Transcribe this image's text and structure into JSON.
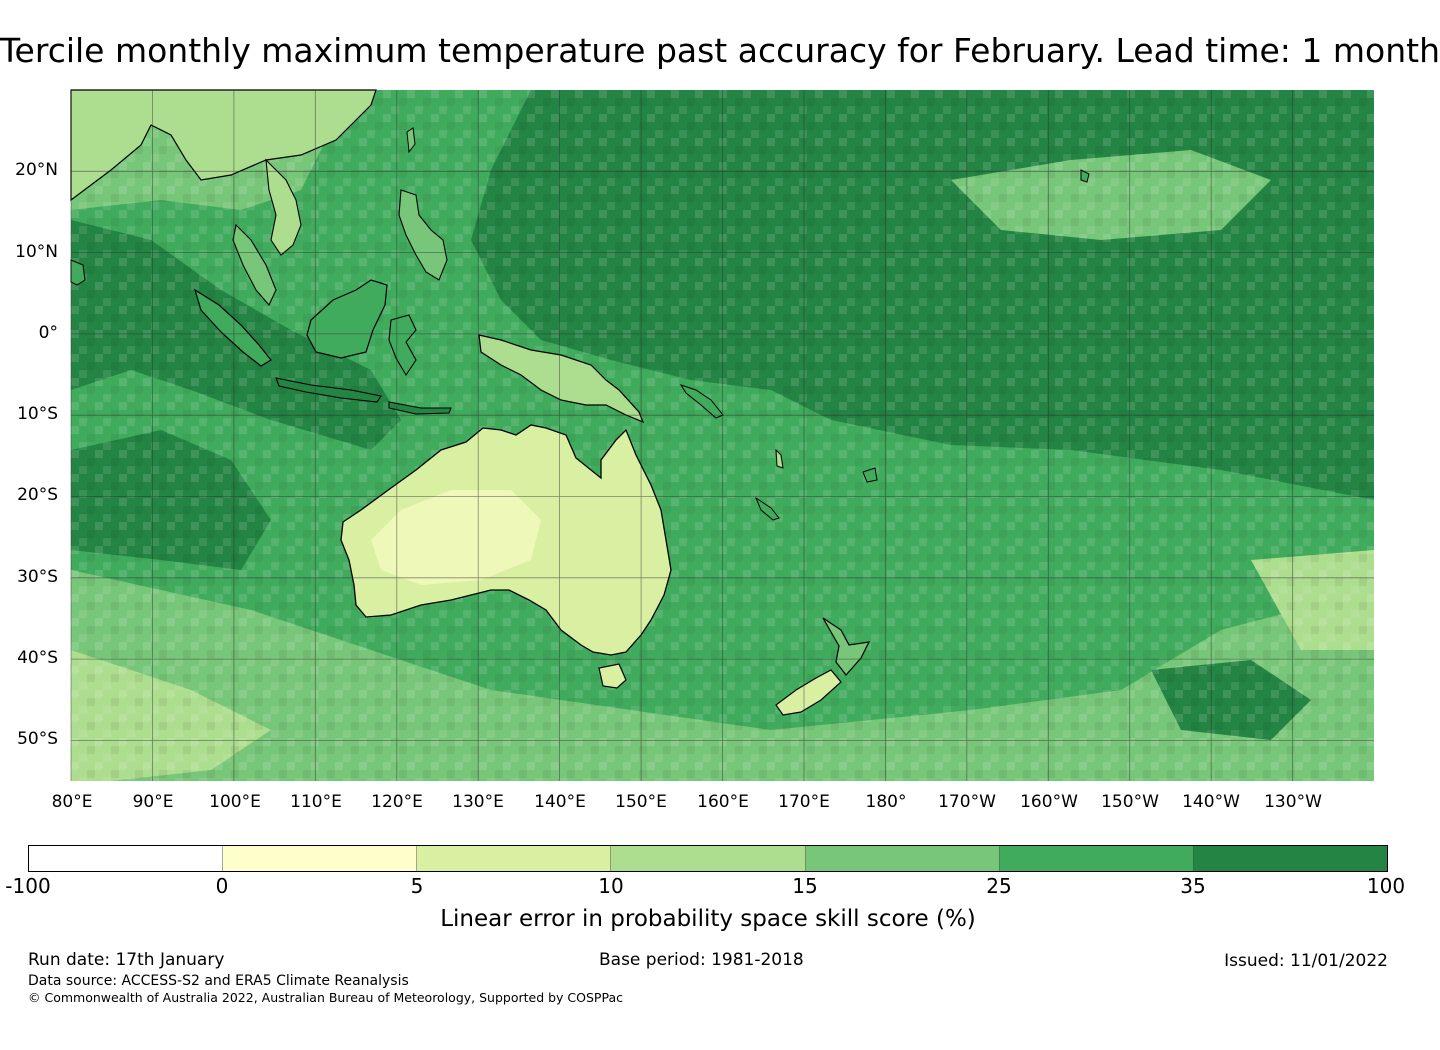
{
  "title": "Tercile monthly maximum temperature past accuracy for February. Lead time: 1 month",
  "map": {
    "region": "Pacific, Australia and Maritime Continent",
    "lat_labels": [
      "20°N",
      "10°N",
      "0°",
      "10°S",
      "20°S",
      "30°S",
      "40°S",
      "50°S"
    ],
    "lon_labels": [
      "80°E",
      "90°E",
      "100°E",
      "110°E",
      "120°E",
      "130°E",
      "140°E",
      "150°E",
      "160°E",
      "170°E",
      "180°",
      "170°W",
      "160°W",
      "150°W",
      "140°W",
      "130°W"
    ],
    "lat_values": [
      20,
      10,
      0,
      -10,
      -20,
      -30,
      -40,
      -50
    ],
    "lon_values": [
      80,
      90,
      100,
      110,
      120,
      130,
      140,
      150,
      160,
      170,
      180,
      190,
      200,
      210,
      220,
      230
    ],
    "extent": {
      "lon_min": 80,
      "lon_max": 240,
      "lat_min": -55,
      "lat_max": 30
    },
    "colors": {
      "gridline": "#3a3a3a",
      "coastline": "#000000"
    }
  },
  "colorbar": {
    "ticks": [
      "-100",
      "0",
      "5",
      "10",
      "15",
      "25",
      "35",
      "100"
    ],
    "colors": [
      "#ffffff",
      "#ffffcc",
      "#d9f0a3",
      "#addd8e",
      "#78c679",
      "#41ab5d",
      "#238443"
    ],
    "label": "Linear error in probability space skill score (%)"
  },
  "footer": {
    "run_date": "Run date: 17th January",
    "base_period": "Base period: 1981-2018",
    "issued": "Issued: 11/01/2022",
    "data_source": "Data source: ACCESS-S2 and ERA5 Climate Reanalysis",
    "copyright": "© Commonwealth of Australia 2022, Australian Bureau of Meteorology, Supported by COSPPac"
  }
}
